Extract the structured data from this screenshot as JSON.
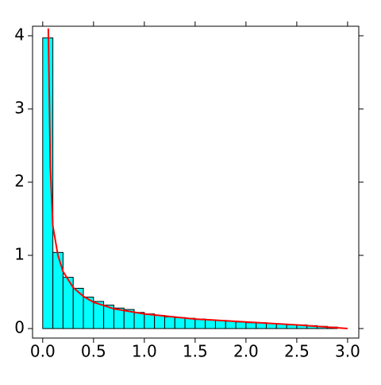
{
  "chart_data": {
    "type": "histogram",
    "bins": [
      0.0,
      0.1,
      0.2,
      0.3,
      0.4,
      0.5,
      0.6,
      0.7,
      0.8,
      0.9,
      1.0,
      1.1,
      1.2,
      1.3,
      1.4,
      1.5,
      1.6,
      1.7,
      1.8,
      1.9,
      2.0,
      2.1,
      2.2,
      2.3,
      2.4,
      2.5,
      2.6,
      2.7,
      2.8,
      2.9
    ],
    "values": [
      3.97,
      1.04,
      0.7,
      0.55,
      0.43,
      0.37,
      0.32,
      0.28,
      0.26,
      0.22,
      0.2,
      0.18,
      0.16,
      0.15,
      0.14,
      0.13,
      0.12,
      0.11,
      0.1,
      0.09,
      0.08,
      0.08,
      0.07,
      0.06,
      0.05,
      0.05,
      0.04,
      0.03,
      0.02
    ],
    "color": "#00ffff",
    "curve": {
      "color": "#ff0000",
      "x": [
        0.055,
        0.075,
        0.1,
        0.15,
        0.2,
        0.3,
        0.4,
        0.5,
        0.7,
        1.0,
        1.5,
        2.0,
        2.5,
        3.0
      ],
      "y": [
        4.1,
        2.2,
        1.4,
        1.0,
        0.78,
        0.56,
        0.44,
        0.36,
        0.27,
        0.2,
        0.13,
        0.09,
        0.05,
        0.0
      ]
    },
    "xlim": [
      -0.1,
      3.11
    ],
    "ylim": [
      -0.13,
      4.13
    ],
    "xticks": [
      {
        "value": 0,
        "label": "0.0"
      },
      0.5,
      {
        "value": 1,
        "label": "1.0"
      },
      1.5,
      {
        "value": 2,
        "label": "2.0"
      },
      2.5,
      {
        "value": 3,
        "label": "3.0"
      }
    ],
    "yticks": [
      0,
      1,
      2,
      3,
      4
    ]
  }
}
